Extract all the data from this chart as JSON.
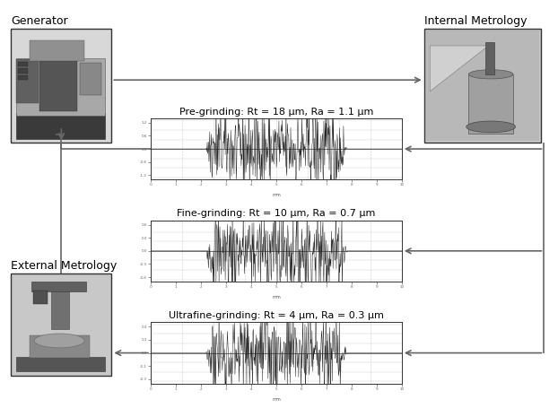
{
  "bg_color": "#ffffff",
  "text_color": "#000000",
  "arrow_color": "#666666",
  "box_edge_color": "#333333",
  "labels": {
    "generator": "Generator",
    "internal_metrology": "Internal Metrology",
    "external_metrology": "External Metrology",
    "pre_grinding": "Pre-grinding: Rt = 18 μm, Ra = 1.1 μm",
    "fine_grinding": "Fine-grinding: Rt = 10 μm, Ra = 0.7 μm",
    "ultrafine_grinding": "Ultrafine-grinding: Rt = 4 μm, Ra = 0.3 μm"
  },
  "label_fontsize": 9,
  "chart_label_fontsize": 8,
  "boxes": {
    "generator": [
      0.02,
      0.65,
      0.18,
      0.28
    ],
    "internal_metrology": [
      0.76,
      0.65,
      0.21,
      0.28
    ],
    "external_metrology": [
      0.02,
      0.08,
      0.18,
      0.25
    ],
    "pre_grinding_chart": [
      0.27,
      0.56,
      0.45,
      0.15
    ],
    "fine_grinding_chart": [
      0.27,
      0.31,
      0.45,
      0.15
    ],
    "ultrafine_chart": [
      0.27,
      0.06,
      0.45,
      0.15
    ]
  },
  "chart_amplitudes": {
    "pre_grinding": 1.0,
    "fine_grinding": 0.5,
    "ultrafine_grinding": 0.25
  },
  "noise_seeds": {
    "pre_grinding": 42,
    "fine_grinding": 7,
    "ultrafine_grinding": 99
  }
}
